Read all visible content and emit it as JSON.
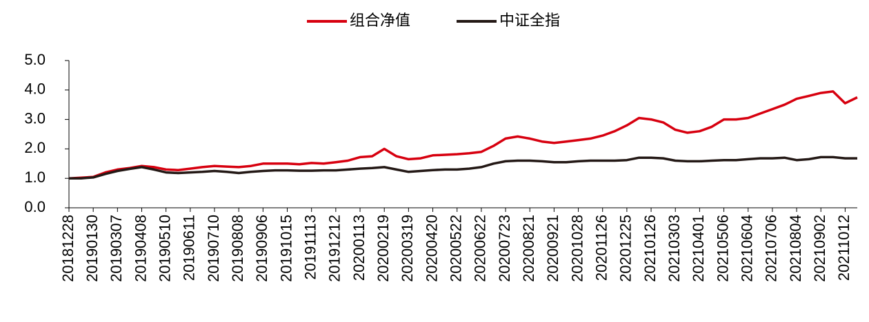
{
  "chart_data": {
    "type": "line",
    "categories": [
      "20181228",
      null,
      "20190130",
      null,
      "20190307",
      null,
      "20190408",
      null,
      "20190510",
      null,
      "20190611",
      null,
      "20190710",
      null,
      "20190808",
      null,
      "20190906",
      null,
      "20191015",
      null,
      "20191113",
      null,
      "20191212",
      null,
      "20200113",
      null,
      "20200219",
      null,
      "20200319",
      null,
      "20200420",
      null,
      "20200522",
      null,
      "20200622",
      null,
      "20200723",
      null,
      "20200821",
      null,
      "20200921",
      null,
      "20201028",
      null,
      "20201126",
      null,
      "20201225",
      null,
      "20210126",
      null,
      "20210303",
      null,
      "20210401",
      null,
      "20210506",
      null,
      "20210604",
      null,
      "20210706",
      null,
      "20210804",
      null,
      "20210902",
      null,
      "20211012",
      null
    ],
    "series": [
      {
        "name": "组合净值",
        "color": "#d7000f",
        "values": [
          1.0,
          1.02,
          1.05,
          1.2,
          1.3,
          1.35,
          1.42,
          1.38,
          1.3,
          1.28,
          1.33,
          1.38,
          1.42,
          1.4,
          1.38,
          1.42,
          1.5,
          1.5,
          1.5,
          1.48,
          1.52,
          1.5,
          1.55,
          1.6,
          1.72,
          1.75,
          2.0,
          1.75,
          1.65,
          1.68,
          1.78,
          1.8,
          1.82,
          1.85,
          1.9,
          2.1,
          2.35,
          2.42,
          2.35,
          2.25,
          2.2,
          2.25,
          2.3,
          2.35,
          2.45,
          2.6,
          2.8,
          3.05,
          3.0,
          2.9,
          2.65,
          2.55,
          2.6,
          2.75,
          3.0,
          3.0,
          3.05,
          3.2,
          3.35,
          3.5,
          3.7,
          3.8,
          3.9,
          3.95,
          3.55,
          3.75
        ]
      },
      {
        "name": "中证全指",
        "color": "#231815",
        "values": [
          1.0,
          1.0,
          1.03,
          1.15,
          1.25,
          1.32,
          1.38,
          1.3,
          1.2,
          1.18,
          1.2,
          1.22,
          1.25,
          1.22,
          1.18,
          1.22,
          1.25,
          1.27,
          1.27,
          1.26,
          1.26,
          1.27,
          1.27,
          1.3,
          1.33,
          1.35,
          1.38,
          1.3,
          1.22,
          1.25,
          1.28,
          1.3,
          1.3,
          1.33,
          1.38,
          1.5,
          1.58,
          1.6,
          1.6,
          1.58,
          1.55,
          1.55,
          1.58,
          1.6,
          1.6,
          1.6,
          1.62,
          1.7,
          1.7,
          1.68,
          1.6,
          1.58,
          1.58,
          1.6,
          1.62,
          1.62,
          1.65,
          1.68,
          1.68,
          1.7,
          1.62,
          1.65,
          1.72,
          1.72,
          1.68,
          1.68
        ]
      }
    ],
    "ylim": [
      0,
      5
    ],
    "yticks": [
      {
        "value": 0,
        "label": "0.0"
      },
      {
        "value": 1,
        "label": "1.0"
      },
      {
        "value": 2,
        "label": "2.0"
      },
      {
        "value": 3,
        "label": "3.0"
      },
      {
        "value": 4,
        "label": "4.0"
      },
      {
        "value": 5,
        "label": "5.0"
      }
    ],
    "legend": "top"
  }
}
